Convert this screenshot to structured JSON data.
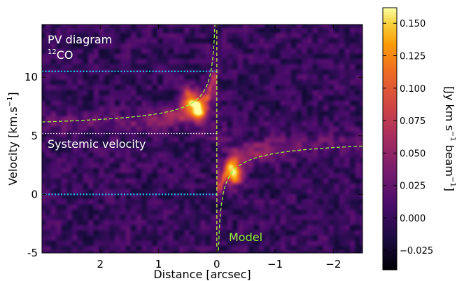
{
  "chart_data": {
    "type": "heatmap",
    "title": "",
    "panel_annotation": {
      "title": "PV diagram",
      "molecule_sup": "12",
      "molecule": "CO"
    },
    "xlabel": "Distance [arcsec]",
    "ylabel": {
      "text": "Velocity [km.s",
      "sup": "−1",
      "close": "]"
    },
    "xlim": [
      3.0,
      -2.5
    ],
    "ylim": [
      -5,
      14.5
    ],
    "x_ticks": [
      2,
      1,
      0,
      -1,
      -2
    ],
    "x_tick_labels": [
      "2",
      "1",
      "0",
      "−1",
      "−2"
    ],
    "y_ticks": [
      -5,
      0,
      5,
      10
    ],
    "y_tick_labels": [
      "-5",
      "0",
      "5",
      "10"
    ],
    "colormap": "inferno",
    "colorbar": {
      "label": {
        "text": "[Jy km s",
        "sup1": "−1",
        "mid": " beam",
        "sup2": "−1",
        "close": "]"
      },
      "range": [
        -0.04,
        0.162
      ],
      "ticks": [
        -0.025,
        0.0,
        0.025,
        0.05,
        0.075,
        0.1,
        0.125,
        0.15
      ],
      "tick_labels": [
        "−0.025",
        "0.000",
        "0.025",
        "0.050",
        "0.075",
        "0.100",
        "0.125",
        "0.150"
      ]
    },
    "emission_peaks": [
      {
        "x": -0.3,
        "y": 1.7,
        "value": 0.16
      },
      {
        "x": 0.45,
        "y": 8.2,
        "value": 0.13
      },
      {
        "x": 0.3,
        "y": 7.0,
        "value": 0.12
      }
    ],
    "reference_lines": [
      {
        "label": "",
        "y": 10.5,
        "color": "#20b8e8",
        "style": "dotted",
        "x_range": [
          3.0,
          0.0
        ]
      },
      {
        "label": "Systemic velocity",
        "y": 5.2,
        "color": "#ffffff",
        "style": "dotted",
        "x_range": [
          3.0,
          0.0
        ]
      },
      {
        "label": "",
        "y": 0.0,
        "color": "#20b8e8",
        "style": "dotted",
        "x_range": [
          3.0,
          0.0
        ]
      },
      {
        "label": "",
        "x": 0.0,
        "color": "#c6f23a",
        "style": "dashed"
      }
    ],
    "model": {
      "label": "Model",
      "color": "#9cf23a",
      "systemic_velocity": 5.2,
      "description": "Keplerian curve v = vsys ± A / sqrt(|x|)",
      "amplitude": 1.7
    },
    "colors": {
      "model": "#9cf23a",
      "dashed_vertical": "#c6f23a",
      "dotted_blue": "#20b8e8",
      "text_white": "#ffffff"
    }
  }
}
